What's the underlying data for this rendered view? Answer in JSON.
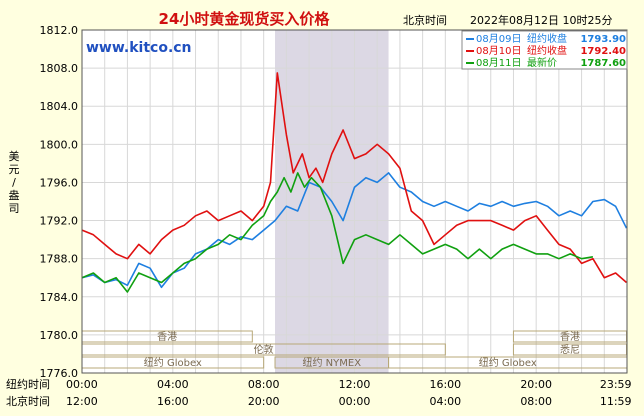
{
  "header": {
    "title": "24小时黄金现货买入价格",
    "location": "北京时间",
    "datetime": "2022年08月12日 10时25分",
    "watermark": "www.kitco.cn"
  },
  "legend": [
    {
      "date": "08月09日",
      "label": "纽约收盘",
      "value": "1793.90",
      "color": "#1e7fe0"
    },
    {
      "date": "08月10日",
      "label": "纽约收盘",
      "value": "1792.40",
      "color": "#e01010"
    },
    {
      "date": "08月11日",
      "label": "最新价",
      "value": "1787.60",
      "color": "#10a010"
    }
  ],
  "ylabel": "美元/盎司",
  "row_labels": {
    "ny": "纽约时间",
    "bj": "北京时间"
  },
  "sessions": [
    {
      "name": "香港",
      "row": 1
    },
    {
      "name": "伦敦",
      "row": 2
    },
    {
      "name": "纽约 Globex",
      "row": 3
    },
    {
      "name": "纽约 NYMEX",
      "row": 3
    },
    {
      "name": "纽约 Globex",
      "row": 3
    },
    {
      "name": "香港",
      "row": 1
    },
    {
      "name": "悉尼",
      "row": 2
    }
  ],
  "chart_data": {
    "type": "line",
    "ylim": [
      1776.0,
      1812.0
    ],
    "yticks": [
      1776.0,
      1780.0,
      1784.0,
      1788.0,
      1792.0,
      1796.0,
      1800.0,
      1804.0,
      1808.0,
      1812.0
    ],
    "ny_ticks": [
      "00:00",
      "04:00",
      "08:00",
      "12:00",
      "16:00",
      "20:00",
      "23:59"
    ],
    "bj_ticks": [
      "12:00",
      "16:00",
      "20:00",
      "00:00",
      "04:00",
      "08:00",
      "11:59"
    ],
    "x_unit": "hours since 00:00 New York time",
    "shaded_range": [
      8.5,
      13.5
    ],
    "grid": true,
    "series": [
      {
        "name": "08月09日",
        "color": "#1e7fe0",
        "points": [
          [
            0,
            1786.0
          ],
          [
            0.5,
            1786.3
          ],
          [
            1,
            1785.5
          ],
          [
            1.5,
            1785.8
          ],
          [
            2,
            1785.2
          ],
          [
            2.5,
            1787.5
          ],
          [
            3,
            1787.0
          ],
          [
            3.5,
            1785.0
          ],
          [
            4,
            1786.5
          ],
          [
            4.5,
            1787.0
          ],
          [
            5,
            1788.5
          ],
          [
            5.5,
            1789.0
          ],
          [
            6,
            1790.0
          ],
          [
            6.5,
            1789.5
          ],
          [
            7,
            1790.3
          ],
          [
            7.5,
            1790.0
          ],
          [
            8,
            1791.0
          ],
          [
            8.5,
            1792.0
          ],
          [
            9,
            1793.5
          ],
          [
            9.5,
            1793.0
          ],
          [
            10,
            1796.0
          ],
          [
            10.5,
            1795.5
          ],
          [
            11,
            1794.0
          ],
          [
            11.5,
            1792.0
          ],
          [
            12,
            1795.5
          ],
          [
            12.5,
            1796.5
          ],
          [
            13,
            1796.0
          ],
          [
            13.5,
            1797.0
          ],
          [
            14,
            1795.5
          ],
          [
            14.5,
            1795.0
          ],
          [
            15,
            1794.0
          ],
          [
            15.5,
            1793.5
          ],
          [
            16,
            1794.0
          ],
          [
            16.5,
            1793.5
          ],
          [
            17,
            1793.0
          ],
          [
            17.5,
            1793.8
          ],
          [
            18,
            1793.5
          ],
          [
            18.5,
            1794.0
          ],
          [
            19,
            1793.5
          ],
          [
            19.5,
            1793.8
          ],
          [
            20,
            1794.0
          ],
          [
            20.5,
            1793.5
          ],
          [
            21,
            1792.5
          ],
          [
            21.5,
            1793.0
          ],
          [
            22,
            1792.5
          ],
          [
            22.5,
            1794.0
          ],
          [
            23,
            1794.2
          ],
          [
            23.5,
            1793.5
          ],
          [
            23.98,
            1791.2
          ]
        ]
      },
      {
        "name": "08月10日",
        "color": "#e01010",
        "points": [
          [
            0,
            1791.0
          ],
          [
            0.5,
            1790.5
          ],
          [
            1,
            1789.5
          ],
          [
            1.5,
            1788.5
          ],
          [
            2,
            1788.0
          ],
          [
            2.5,
            1789.5
          ],
          [
            3,
            1788.5
          ],
          [
            3.5,
            1790.0
          ],
          [
            4,
            1791.0
          ],
          [
            4.5,
            1791.5
          ],
          [
            5,
            1792.5
          ],
          [
            5.5,
            1793.0
          ],
          [
            6,
            1792.0
          ],
          [
            6.5,
            1792.5
          ],
          [
            7,
            1793.0
          ],
          [
            7.5,
            1792.0
          ],
          [
            8,
            1793.5
          ],
          [
            8.3,
            1796.0
          ],
          [
            8.6,
            1807.5
          ],
          [
            9,
            1801.0
          ],
          [
            9.3,
            1797.0
          ],
          [
            9.7,
            1799.0
          ],
          [
            10,
            1796.5
          ],
          [
            10.3,
            1797.5
          ],
          [
            10.6,
            1796.0
          ],
          [
            11,
            1799.0
          ],
          [
            11.5,
            1801.5
          ],
          [
            12,
            1798.5
          ],
          [
            12.5,
            1799.0
          ],
          [
            13,
            1800.0
          ],
          [
            13.5,
            1799.0
          ],
          [
            14,
            1797.5
          ],
          [
            14.5,
            1793.0
          ],
          [
            15,
            1792.0
          ],
          [
            15.5,
            1789.5
          ],
          [
            16,
            1790.5
          ],
          [
            16.5,
            1791.5
          ],
          [
            17,
            1792.0
          ],
          [
            17.5,
            1792.0
          ],
          [
            18,
            1792.0
          ],
          [
            18.5,
            1791.5
          ],
          [
            19,
            1791.0
          ],
          [
            19.5,
            1792.0
          ],
          [
            20,
            1792.5
          ],
          [
            20.5,
            1791.0
          ],
          [
            21,
            1789.5
          ],
          [
            21.5,
            1789.0
          ],
          [
            22,
            1787.5
          ],
          [
            22.5,
            1788.0
          ],
          [
            23,
            1786.0
          ],
          [
            23.5,
            1786.5
          ],
          [
            23.98,
            1785.5
          ]
        ]
      },
      {
        "name": "08月11日",
        "color": "#10a010",
        "points": [
          [
            0,
            1786.0
          ],
          [
            0.5,
            1786.5
          ],
          [
            1,
            1785.5
          ],
          [
            1.5,
            1786.0
          ],
          [
            2,
            1784.5
          ],
          [
            2.5,
            1786.5
          ],
          [
            3,
            1786.0
          ],
          [
            3.5,
            1785.5
          ],
          [
            4,
            1786.5
          ],
          [
            4.5,
            1787.5
          ],
          [
            5,
            1788.0
          ],
          [
            5.5,
            1789.0
          ],
          [
            6,
            1789.5
          ],
          [
            6.5,
            1790.5
          ],
          [
            7,
            1790.0
          ],
          [
            7.5,
            1791.5
          ],
          [
            8,
            1792.5
          ],
          [
            8.3,
            1794.0
          ],
          [
            8.6,
            1795.0
          ],
          [
            8.9,
            1796.5
          ],
          [
            9.2,
            1795.0
          ],
          [
            9.5,
            1797.0
          ],
          [
            9.8,
            1795.5
          ],
          [
            10.1,
            1796.5
          ],
          [
            10.5,
            1795.5
          ],
          [
            11,
            1792.5
          ],
          [
            11.5,
            1787.5
          ],
          [
            12,
            1790.0
          ],
          [
            12.5,
            1790.5
          ],
          [
            13,
            1790.0
          ],
          [
            13.5,
            1789.5
          ],
          [
            14,
            1790.5
          ],
          [
            14.5,
            1789.5
          ],
          [
            15,
            1788.5
          ],
          [
            15.5,
            1789.0
          ],
          [
            16,
            1789.5
          ],
          [
            16.5,
            1789.0
          ],
          [
            17,
            1788.0
          ],
          [
            17.5,
            1789.0
          ],
          [
            18,
            1788.0
          ],
          [
            18.5,
            1789.0
          ],
          [
            19,
            1789.5
          ],
          [
            19.5,
            1789.0
          ],
          [
            20,
            1788.5
          ],
          [
            20.5,
            1788.5
          ],
          [
            21,
            1788.0
          ],
          [
            21.5,
            1788.5
          ],
          [
            22,
            1788.0
          ],
          [
            22.5,
            1788.2
          ]
        ]
      }
    ]
  }
}
